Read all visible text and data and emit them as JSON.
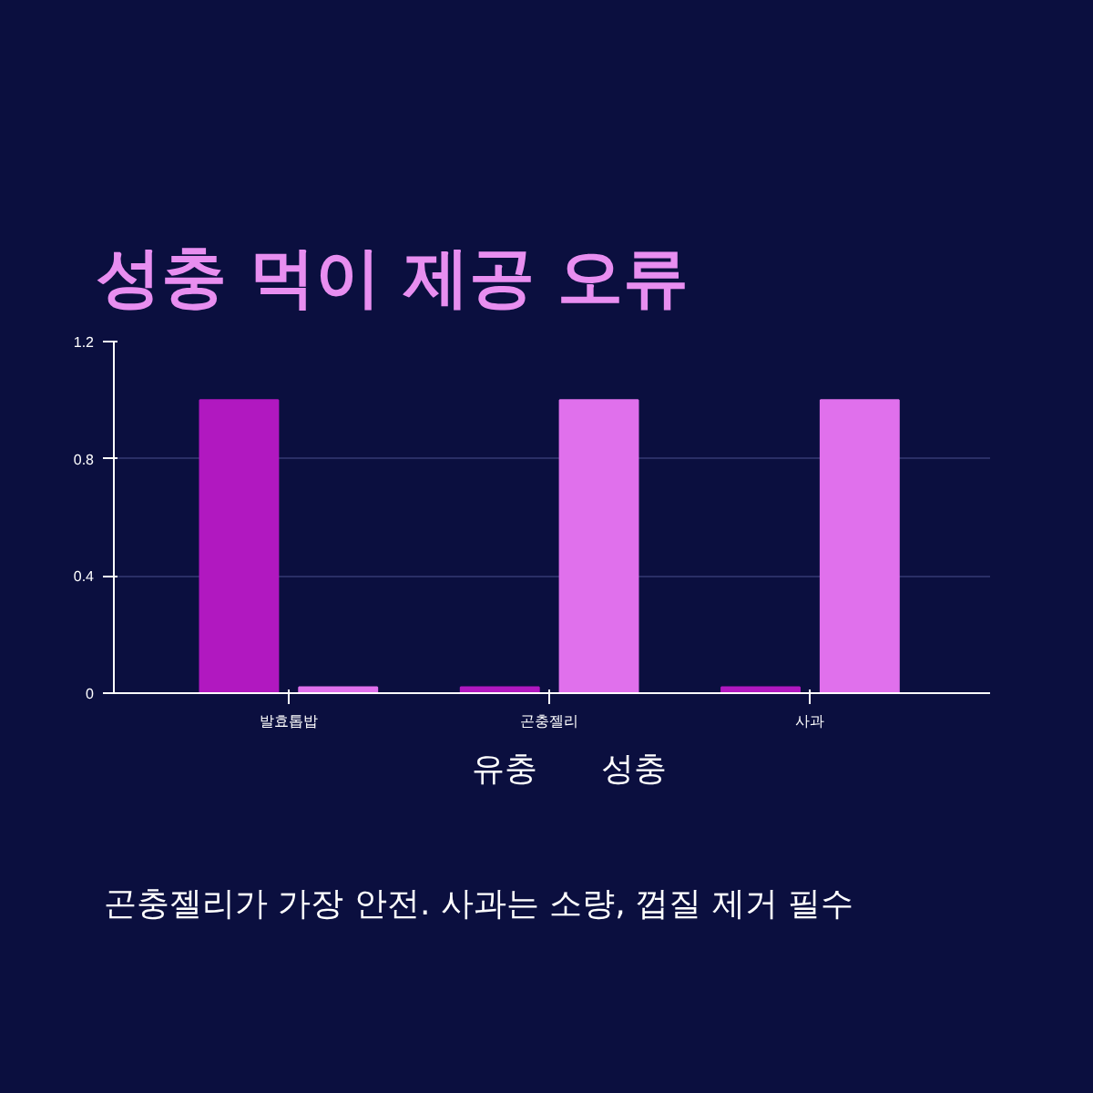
{
  "chart_data": {
    "type": "bar",
    "title": "성충 먹이 제공 오류",
    "categories": [
      "발효톱밥",
      "곤충젤리",
      "사과"
    ],
    "series": [
      {
        "name": "유충",
        "color": "#b118c0",
        "values": [
          1,
          0.02,
          0.02
        ]
      },
      {
        "name": "성충",
        "color": "#e070ec",
        "values": [
          0.02,
          1,
          1
        ]
      }
    ],
    "ylim": [
      0,
      1.2
    ],
    "yticks": [
      0,
      0.4,
      0.8,
      1.2
    ],
    "grid": "y",
    "legend": "bottom",
    "annotations": [
      "곤충젤리가 가장 안전. 사과는 소량, 껍질 제거 필수"
    ]
  }
}
